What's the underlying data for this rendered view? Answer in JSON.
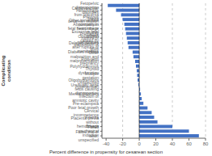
{
  "chart_data": {
    "type": "bar",
    "orientation": "horizontal",
    "xlabel": "Percent difference in propensity for cesarean section",
    "ylabel": "Complicating\ncondition",
    "categories": [
      "Fetopelvic disproportion",
      "Cardiovascular disorders",
      "Hemorrhage from placenta previa",
      "Previous cesarean section",
      "Other immediate postpartum hemorrhage",
      "Abnormality in fetal heart rate or rhythm",
      "Excessive fetal growth",
      "Premature rupture of membranes",
      "Obstruction caused by malposition of fetus",
      "Delayed delivery after rupture of membranes",
      "Diabetes mellitus",
      "Other malposition and malpresentation",
      "Post-term pregnancy",
      "Polyhydramnios",
      "Thyroid dysfunction",
      "Multiple gestation",
      "Oligohydramnios",
      "Unspecified hypertension",
      "Unusually large fetus causing disproportion",
      "Mental disorders",
      "Infection of amniotic cavity",
      "Pre-eclampsia",
      "Poor fetal growth",
      "Cervical incompetence",
      "Anemia",
      "Placenta previa without hemorrhage",
      "Breech",
      "Failed mechanical induction",
      "Failed trial of labor, unspecified"
    ],
    "values": [
      -38,
      -28,
      -22,
      -20,
      -18,
      -17,
      -16,
      -15,
      -14,
      -13,
      -8,
      -7,
      -5,
      -4,
      -3,
      -2.5,
      -2,
      -1,
      1,
      2,
      3,
      5,
      10,
      15,
      18,
      22,
      40,
      60,
      72
    ],
    "color": "#4472c4",
    "xlim": [
      -45,
      80
    ],
    "xticks": [
      -40,
      -20,
      0,
      20,
      40,
      60,
      80
    ],
    "grid": true
  }
}
